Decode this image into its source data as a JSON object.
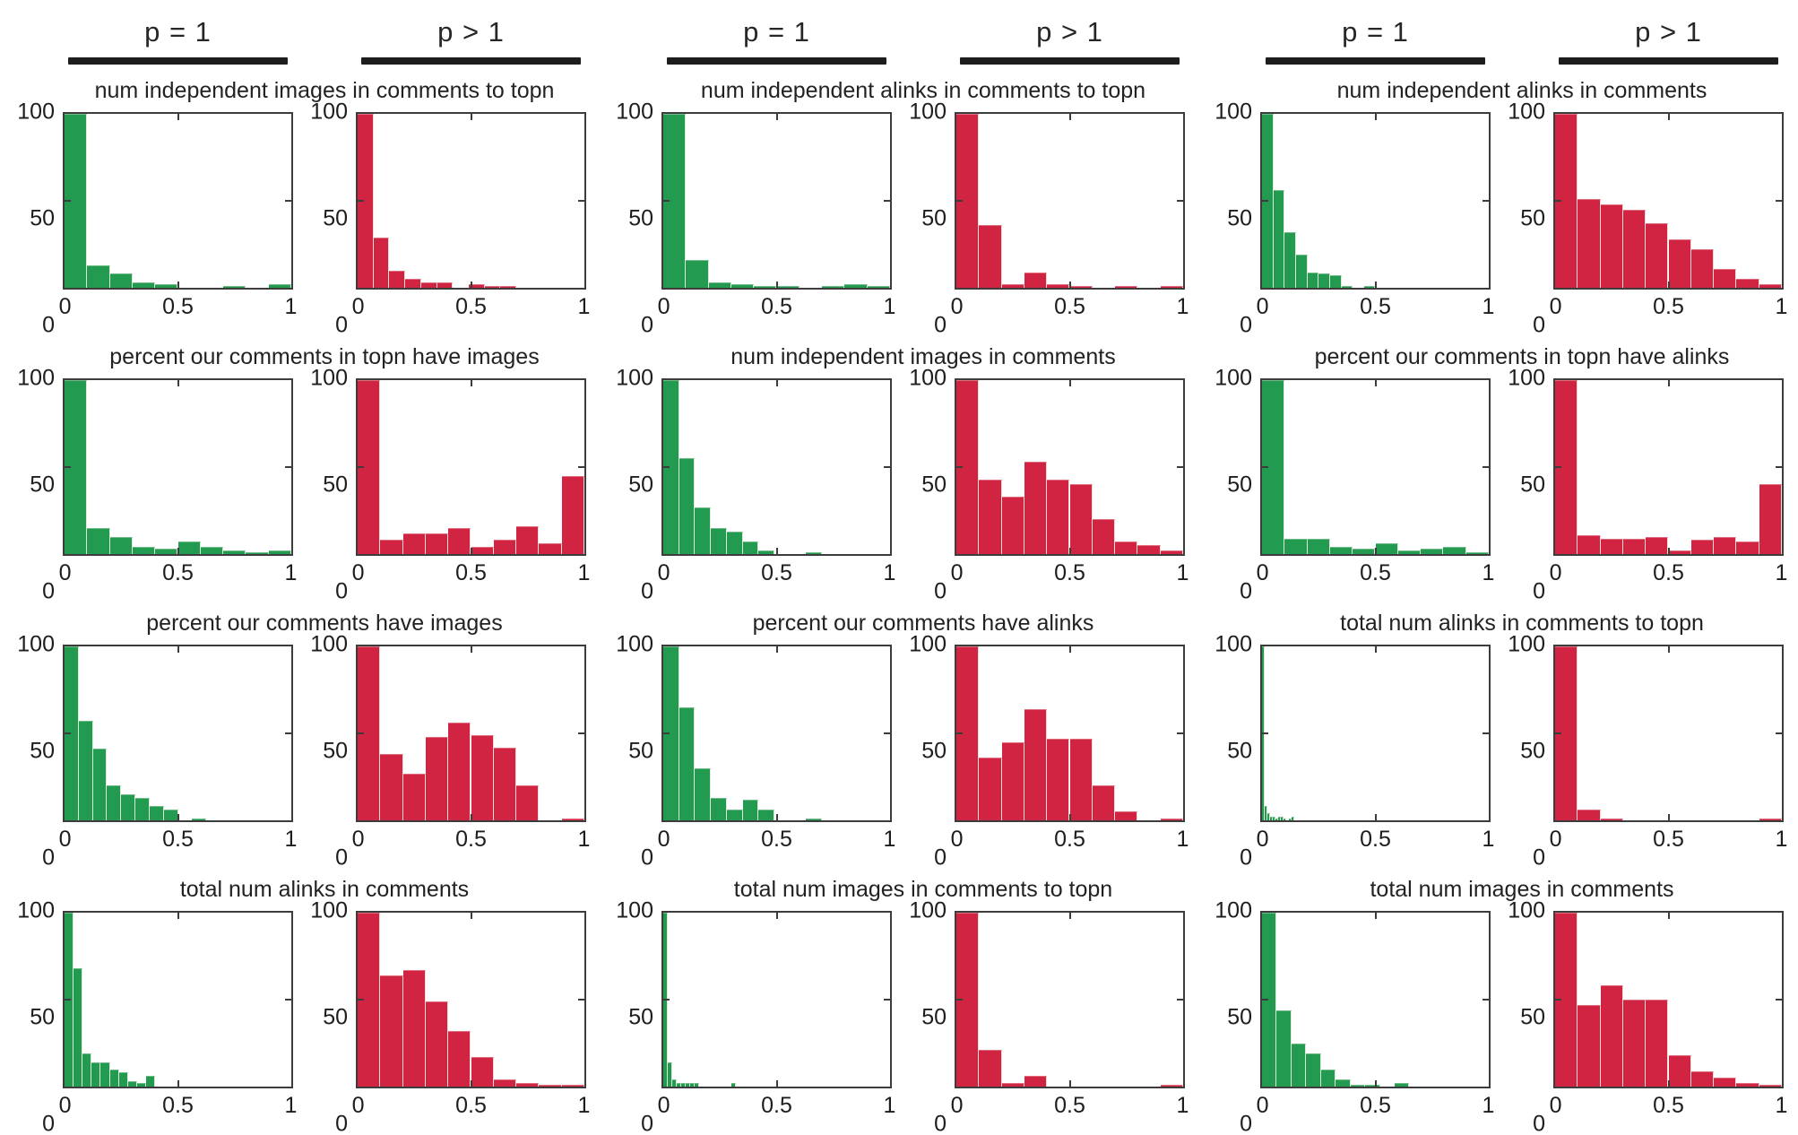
{
  "figure": {
    "background": "#ffffff",
    "layout": "4 rows x 3 column-groups; each group is a (p = 1, p > 1) histogram pair"
  },
  "colors": {
    "p1_green": "#229a50",
    "pgt1_red": "#d12342",
    "axis": "#3c3c3c",
    "header_bar": "#1d1d1d",
    "text": "#262626"
  },
  "headers": {
    "left": "p = 1",
    "right": "p > 1"
  },
  "axes": {
    "x_ticks": [
      "0",
      "0.5",
      "1"
    ],
    "y_ticks": [
      "100",
      "50",
      "0"
    ],
    "xlim": [
      0,
      1
    ],
    "ylim": [
      0,
      100
    ],
    "grid": false
  },
  "chart_data": [
    {
      "type": "bar",
      "title": "num independent images in comments to topn",
      "xlim": [
        0,
        1
      ],
      "ylim": [
        0,
        100
      ],
      "p1": {
        "name": "p = 1",
        "bin_width": 0.1,
        "values": [
          100,
          13,
          8,
          3,
          2,
          0,
          0,
          1,
          0,
          2
        ]
      },
      "pgt1": {
        "name": "p > 1",
        "bin_width": 0.07,
        "values": [
          100,
          29,
          10,
          5,
          3,
          3,
          0,
          2,
          1,
          1
        ]
      }
    },
    {
      "type": "bar",
      "title": "num independent alinks in comments to topn",
      "xlim": [
        0,
        1
      ],
      "ylim": [
        0,
        100
      ],
      "p1": {
        "name": "p = 1",
        "bin_width": 0.1,
        "values": [
          100,
          16,
          3,
          2,
          1,
          1,
          0,
          1,
          2,
          1
        ]
      },
      "pgt1": {
        "name": "p > 1",
        "bin_width": 0.1,
        "values": [
          100,
          36,
          2,
          9,
          2,
          1,
          0,
          1,
          0,
          1
        ]
      }
    },
    {
      "type": "bar",
      "title": "num independent alinks in comments",
      "xlim": [
        0,
        1
      ],
      "ylim": [
        0,
        100
      ],
      "p1": {
        "name": "p = 1",
        "bin_width": 0.05,
        "values": [
          100,
          56,
          32,
          19,
          9,
          8,
          7,
          1,
          0,
          1
        ]
      },
      "pgt1": {
        "name": "p > 1",
        "bin_width": 0.1,
        "values": [
          100,
          51,
          48,
          45,
          37,
          28,
          22,
          11,
          5,
          2
        ]
      }
    },
    {
      "type": "bar",
      "title": "percent our comments in topn have images",
      "xlim": [
        0,
        1
      ],
      "ylim": [
        0,
        100
      ],
      "p1": {
        "name": "p = 1",
        "bin_width": 0.1,
        "values": [
          100,
          15,
          10,
          4,
          3,
          7,
          4,
          2,
          1,
          2
        ]
      },
      "pgt1": {
        "name": "p > 1",
        "bin_width": 0.1,
        "values": [
          100,
          8,
          12,
          12,
          15,
          4,
          8,
          16,
          6,
          45
        ]
      }
    },
    {
      "type": "bar",
      "title": "num independent images in comments",
      "xlim": [
        0,
        1
      ],
      "ylim": [
        0,
        100
      ],
      "p1": {
        "name": "p = 1",
        "bin_width": 0.07,
        "values": [
          100,
          55,
          27,
          15,
          13,
          7,
          2,
          0,
          0,
          1
        ]
      },
      "pgt1": {
        "name": "p > 1",
        "bin_width": 0.1,
        "values": [
          100,
          43,
          33,
          53,
          43,
          40,
          20,
          7,
          5,
          2
        ]
      }
    },
    {
      "type": "bar",
      "title": "percent our comments in topn have alinks",
      "xlim": [
        0,
        1
      ],
      "ylim": [
        0,
        100
      ],
      "p1": {
        "name": "p = 1",
        "bin_width": 0.1,
        "values": [
          100,
          9,
          9,
          4,
          3,
          6,
          2,
          3,
          4,
          1
        ]
      },
      "pgt1": {
        "name": "p > 1",
        "bin_width": 0.1,
        "values": [
          100,
          11,
          9,
          9,
          10,
          2,
          8,
          10,
          7,
          40
        ]
      }
    },
    {
      "type": "bar",
      "title": "percent our comments have images",
      "xlim": [
        0,
        1
      ],
      "ylim": [
        0,
        100
      ],
      "p1": {
        "name": "p = 1",
        "bin_width": 0.0625,
        "values": [
          100,
          57,
          41,
          20,
          15,
          13,
          8,
          6,
          0,
          1
        ]
      },
      "pgt1": {
        "name": "p > 1",
        "bin_width": 0.1,
        "values": [
          100,
          38,
          27,
          48,
          56,
          49,
          42,
          20,
          0,
          1
        ]
      }
    },
    {
      "type": "bar",
      "title": "percent our comments have alinks",
      "xlim": [
        0,
        1
      ],
      "ylim": [
        0,
        100
      ],
      "p1": {
        "name": "p = 1",
        "bin_width": 0.07,
        "values": [
          100,
          65,
          30,
          13,
          6,
          12,
          6,
          0,
          0,
          1
        ]
      },
      "pgt1": {
        "name": "p > 1",
        "bin_width": 0.1,
        "values": [
          100,
          36,
          45,
          64,
          47,
          47,
          20,
          5,
          0,
          1
        ]
      }
    },
    {
      "type": "bar",
      "title": "total num alinks in comments to topn",
      "xlim": [
        0,
        1
      ],
      "ylim": [
        0,
        100
      ],
      "p1": {
        "name": "p = 1",
        "bin_width": 0.012,
        "values": [
          100,
          8,
          4,
          2,
          2,
          1,
          2,
          2,
          1,
          0,
          1,
          2
        ]
      },
      "pgt1": {
        "name": "p > 1",
        "bin_width": 0.1,
        "values": [
          100,
          6,
          1,
          0,
          0,
          0,
          0,
          0,
          0,
          1
        ]
      }
    },
    {
      "type": "bar",
      "title": "total num alinks in comments",
      "xlim": [
        0,
        1
      ],
      "ylim": [
        0,
        100
      ],
      "p1": {
        "name": "p = 1",
        "bin_width": 0.04,
        "values": [
          100,
          68,
          19,
          14,
          14,
          10,
          8,
          3,
          2,
          6
        ]
      },
      "pgt1": {
        "name": "p > 1",
        "bin_width": 0.1,
        "values": [
          100,
          64,
          67,
          49,
          32,
          17,
          4,
          2,
          1,
          1
        ]
      }
    },
    {
      "type": "bar",
      "title": "total num images in comments to topn",
      "xlim": [
        0,
        1
      ],
      "ylim": [
        0,
        100
      ],
      "p1": {
        "name": "p = 1",
        "bin_width": 0.02,
        "values": [
          100,
          14,
          4,
          2,
          2,
          2,
          2,
          2,
          0,
          0,
          0,
          0,
          0,
          0,
          0,
          2
        ]
      },
      "pgt1": {
        "name": "p > 1",
        "bin_width": 0.1,
        "values": [
          100,
          21,
          2,
          6,
          0,
          0,
          0,
          0,
          0,
          1
        ]
      }
    },
    {
      "type": "bar",
      "title": "total num images in comments",
      "xlim": [
        0,
        1
      ],
      "ylim": [
        0,
        100
      ],
      "p1": {
        "name": "p = 1",
        "bin_width": 0.065,
        "values": [
          100,
          44,
          25,
          19,
          10,
          4,
          1,
          1,
          0,
          2
        ]
      },
      "pgt1": {
        "name": "p > 1",
        "bin_width": 0.1,
        "values": [
          100,
          47,
          58,
          50,
          50,
          18,
          9,
          5,
          2,
          1
        ]
      }
    }
  ]
}
